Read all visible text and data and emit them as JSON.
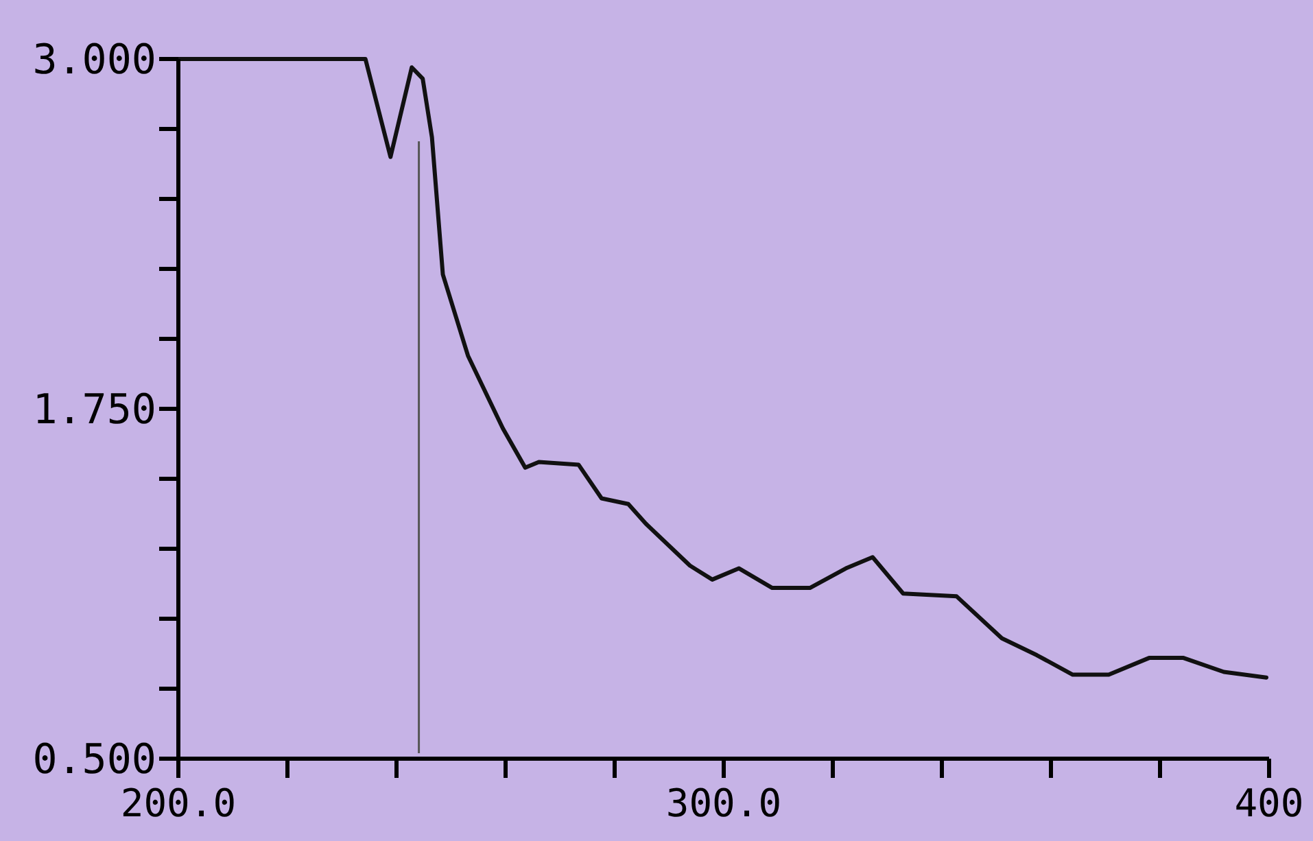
{
  "chart_data": {
    "type": "line",
    "x": [
      200,
      234.3,
      238.9,
      242.8,
      244.8,
      246.5,
      248.5,
      253.1,
      259.5,
      263.6,
      266.1,
      273.4,
      277.6,
      282.5,
      285.7,
      293.8,
      297.9,
      302.8,
      308.9,
      315.8,
      322.4,
      327.3,
      332.9,
      342.7,
      351.0,
      357.4,
      364.0,
      370.6,
      378.0,
      384.3,
      391.7,
      399.5
    ],
    "series": [
      {
        "color": "#111111",
        "values": [
          3.0,
          3.0,
          2.65,
          2.97,
          2.93,
          2.72,
          2.23,
          1.94,
          1.68,
          1.54,
          1.56,
          1.55,
          1.43,
          1.41,
          1.34,
          1.19,
          1.14,
          1.18,
          1.11,
          1.11,
          1.18,
          1.22,
          1.09,
          1.08,
          0.93,
          0.87,
          0.8,
          0.8,
          0.86,
          0.86,
          0.81,
          0.79
        ]
      }
    ],
    "xlim": [
      200,
      400
    ],
    "xticks": [
      {
        "value": 200,
        "label": "200.0"
      },
      {
        "value": 220,
        "label": null
      },
      {
        "value": 240,
        "label": null
      },
      {
        "value": 260,
        "label": null
      },
      {
        "value": 280,
        "label": null
      },
      {
        "value": 300,
        "label": "300.0"
      },
      {
        "value": 320,
        "label": null
      },
      {
        "value": 340,
        "label": null
      },
      {
        "value": 360,
        "label": null
      },
      {
        "value": 380,
        "label": null
      },
      {
        "value": 400,
        "label": "400"
      }
    ],
    "ylim": [
      0.5,
      3.0
    ],
    "yticks": [
      {
        "value": 0.5,
        "label": "0.500"
      },
      {
        "value": 0.75,
        "label": null
      },
      {
        "value": 1.0,
        "label": null
      },
      {
        "value": 1.25,
        "label": null
      },
      {
        "value": 1.5,
        "label": null
      },
      {
        "value": 1.75,
        "label": "1.750"
      },
      {
        "value": 2.0,
        "label": null
      },
      {
        "value": 2.25,
        "label": null
      },
      {
        "value": 2.5,
        "label": null
      },
      {
        "value": 2.75,
        "label": null
      },
      {
        "value": 3.0,
        "label": "3.000"
      }
    ],
    "ref_lines": [
      {
        "axis": "x",
        "value": 244.1,
        "color": "#555555"
      }
    ],
    "grid": false,
    "marker": "none",
    "line_style": "solid"
  }
}
